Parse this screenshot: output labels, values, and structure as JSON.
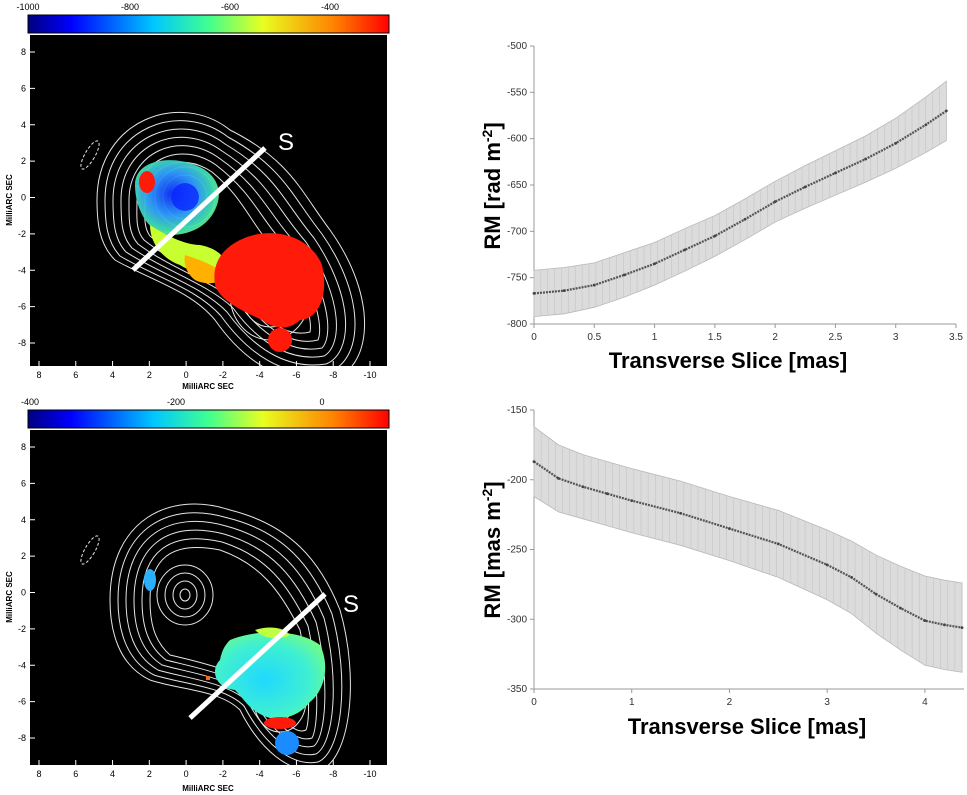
{
  "maps": [
    {
      "colorbar_ticks": [
        "-1000",
        "-800",
        "-600",
        "-400"
      ],
      "y_ticks": [
        "8",
        "6",
        "4",
        "2",
        "0",
        "-2",
        "-4",
        "-6",
        "-8"
      ],
      "x_ticks": [
        "8",
        "6",
        "4",
        "2",
        "0",
        "-2",
        "-4",
        "-6",
        "-8",
        "-10"
      ],
      "y_label": "MilliARC SEC",
      "x_label": "MilliARC SEC",
      "slice_label": "S"
    },
    {
      "colorbar_ticks": [
        "-400",
        "-200",
        "0"
      ],
      "y_ticks": [
        "8",
        "6",
        "4",
        "2",
        "0",
        "-2",
        "-4",
        "-6",
        "-8"
      ],
      "x_ticks": [
        "8",
        "6",
        "4",
        "2",
        "0",
        "-2",
        "-4",
        "-6",
        "-8",
        "-10"
      ],
      "y_label": "MilliARC SEC",
      "x_label": "MilliARC SEC",
      "slice_label": "S"
    }
  ],
  "chart_data": [
    {
      "type": "line",
      "xlabel": "Transverse Slice [mas]",
      "ylabel": "RM [rad m",
      "ylabel_sup": "-2",
      "ylabel_close": "]",
      "xlim": [
        0,
        3.5
      ],
      "ylim": [
        -800,
        -500
      ],
      "x_ticks": [
        "0",
        "0.5",
        "1",
        "1.5",
        "2",
        "2.5",
        "3",
        "3.5"
      ],
      "y_ticks": [
        "-500",
        "-550",
        "-600",
        "-650",
        "-700",
        "-750",
        "-800"
      ],
      "series": [
        {
          "x": [
            0,
            0.25,
            0.5,
            0.75,
            1.0,
            1.25,
            1.5,
            1.75,
            2.0,
            2.25,
            2.5,
            2.75,
            3.0,
            3.25,
            3.42
          ],
          "y": [
            -767,
            -764,
            -758,
            -747,
            -735,
            -720,
            -705,
            -687,
            -668,
            -652,
            -637,
            -622,
            -605,
            -585,
            -570
          ],
          "err": [
            25,
            25,
            24,
            24,
            23,
            23,
            22,
            22,
            22,
            23,
            24,
            25,
            27,
            30,
            32
          ]
        }
      ]
    },
    {
      "type": "line",
      "xlabel": "Transverse Slice [mas]",
      "ylabel": "RM [mas m",
      "ylabel_sup": "-2",
      "ylabel_close": "]",
      "xlim": [
        0,
        4.4
      ],
      "ylim": [
        -350,
        -150
      ],
      "x_ticks": [
        "0",
        "1",
        "2",
        "3",
        "4"
      ],
      "y_ticks": [
        "-150",
        "-200",
        "-250",
        "-300",
        "-350"
      ],
      "series": [
        {
          "x": [
            0,
            0.25,
            0.5,
            0.75,
            1.0,
            1.5,
            2.0,
            2.5,
            3.0,
            3.25,
            3.5,
            3.75,
            4.0,
            4.2,
            4.38
          ],
          "y": [
            -187,
            -199,
            -205,
            -210,
            -215,
            -224,
            -235,
            -246,
            -261,
            -270,
            -282,
            -292,
            -301,
            -304,
            -306
          ],
          "err": [
            25,
            24,
            23,
            23,
            23,
            23,
            23,
            24,
            25,
            26,
            28,
            30,
            32,
            32,
            32
          ]
        }
      ]
    }
  ]
}
